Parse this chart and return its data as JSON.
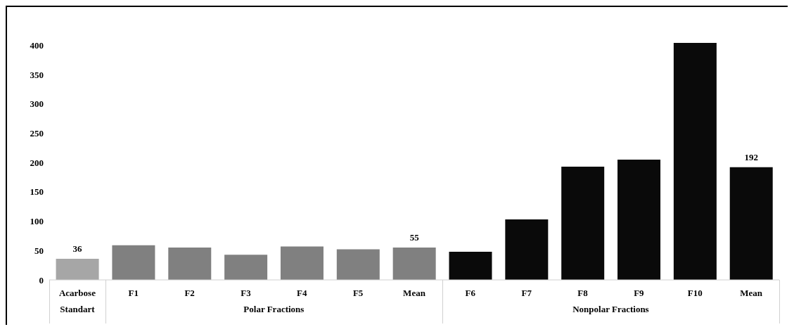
{
  "chart_data": {
    "type": "bar",
    "categories": [
      "Acarbose",
      "F1",
      "F2",
      "F3",
      "F4",
      "F5",
      "Mean",
      "F6",
      "F7",
      "F8",
      "F9",
      "F10",
      "Mean"
    ],
    "values": [
      36,
      59,
      55,
      43,
      57,
      52,
      55,
      48,
      103,
      193,
      205,
      404,
      192
    ],
    "value_labels": [
      "36",
      null,
      null,
      null,
      null,
      null,
      "55",
      null,
      null,
      null,
      null,
      null,
      "192"
    ],
    "colors": [
      "#a6a6a6",
      "#808080",
      "#808080",
      "#808080",
      "#808080",
      "#808080",
      "#808080",
      "#0a0a0a",
      "#0a0a0a",
      "#0a0a0a",
      "#0a0a0a",
      "#0a0a0a",
      "#0a0a0a"
    ],
    "annotations": [
      "Standart",
      "Polar Fractions",
      "Nonpolar Fractions"
    ],
    "ylim": [
      0,
      410
    ],
    "yticks": [
      0,
      50,
      100,
      150,
      200,
      250,
      300,
      350,
      400
    ]
  }
}
